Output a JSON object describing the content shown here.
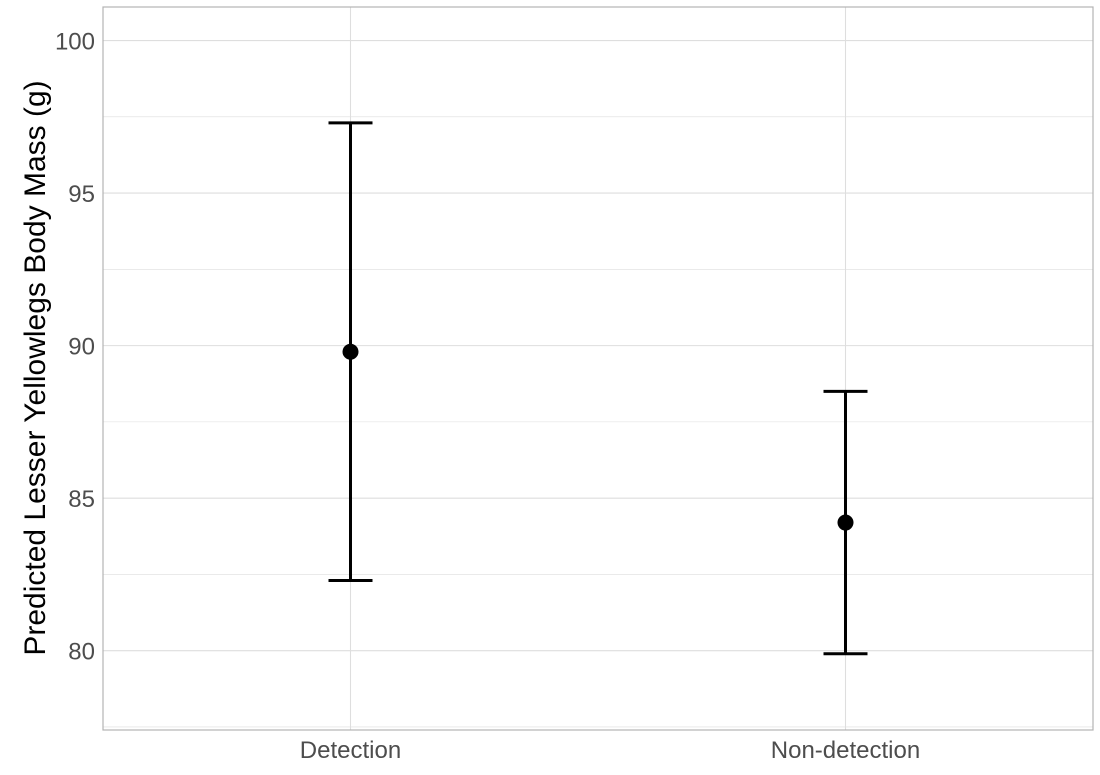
{
  "chart_data": {
    "type": "scatter",
    "title": "",
    "xlabel": "",
    "ylabel": "Predicted Lesser Yellowlegs Body Mass (g)",
    "categories": [
      "Detection",
      "Non-detection"
    ],
    "series": [
      {
        "values": [
          89.8,
          84.2
        ],
        "lower": [
          82.3,
          79.9
        ],
        "upper": [
          97.3,
          88.5
        ]
      }
    ],
    "ylim": [
      77.4,
      101.1
    ],
    "yticks": [
      80,
      85,
      90,
      95,
      100
    ],
    "ytick_labels": [
      "80",
      "85",
      "90",
      "95",
      "100"
    ],
    "grid": true,
    "legend": "none",
    "colors": {
      "point": "#000000",
      "errorbar": "#000000",
      "grid": "#dedede",
      "panel_border": "#b3b3b3",
      "tick_text": "#4d4d4d",
      "axis_title": "#000000"
    }
  }
}
